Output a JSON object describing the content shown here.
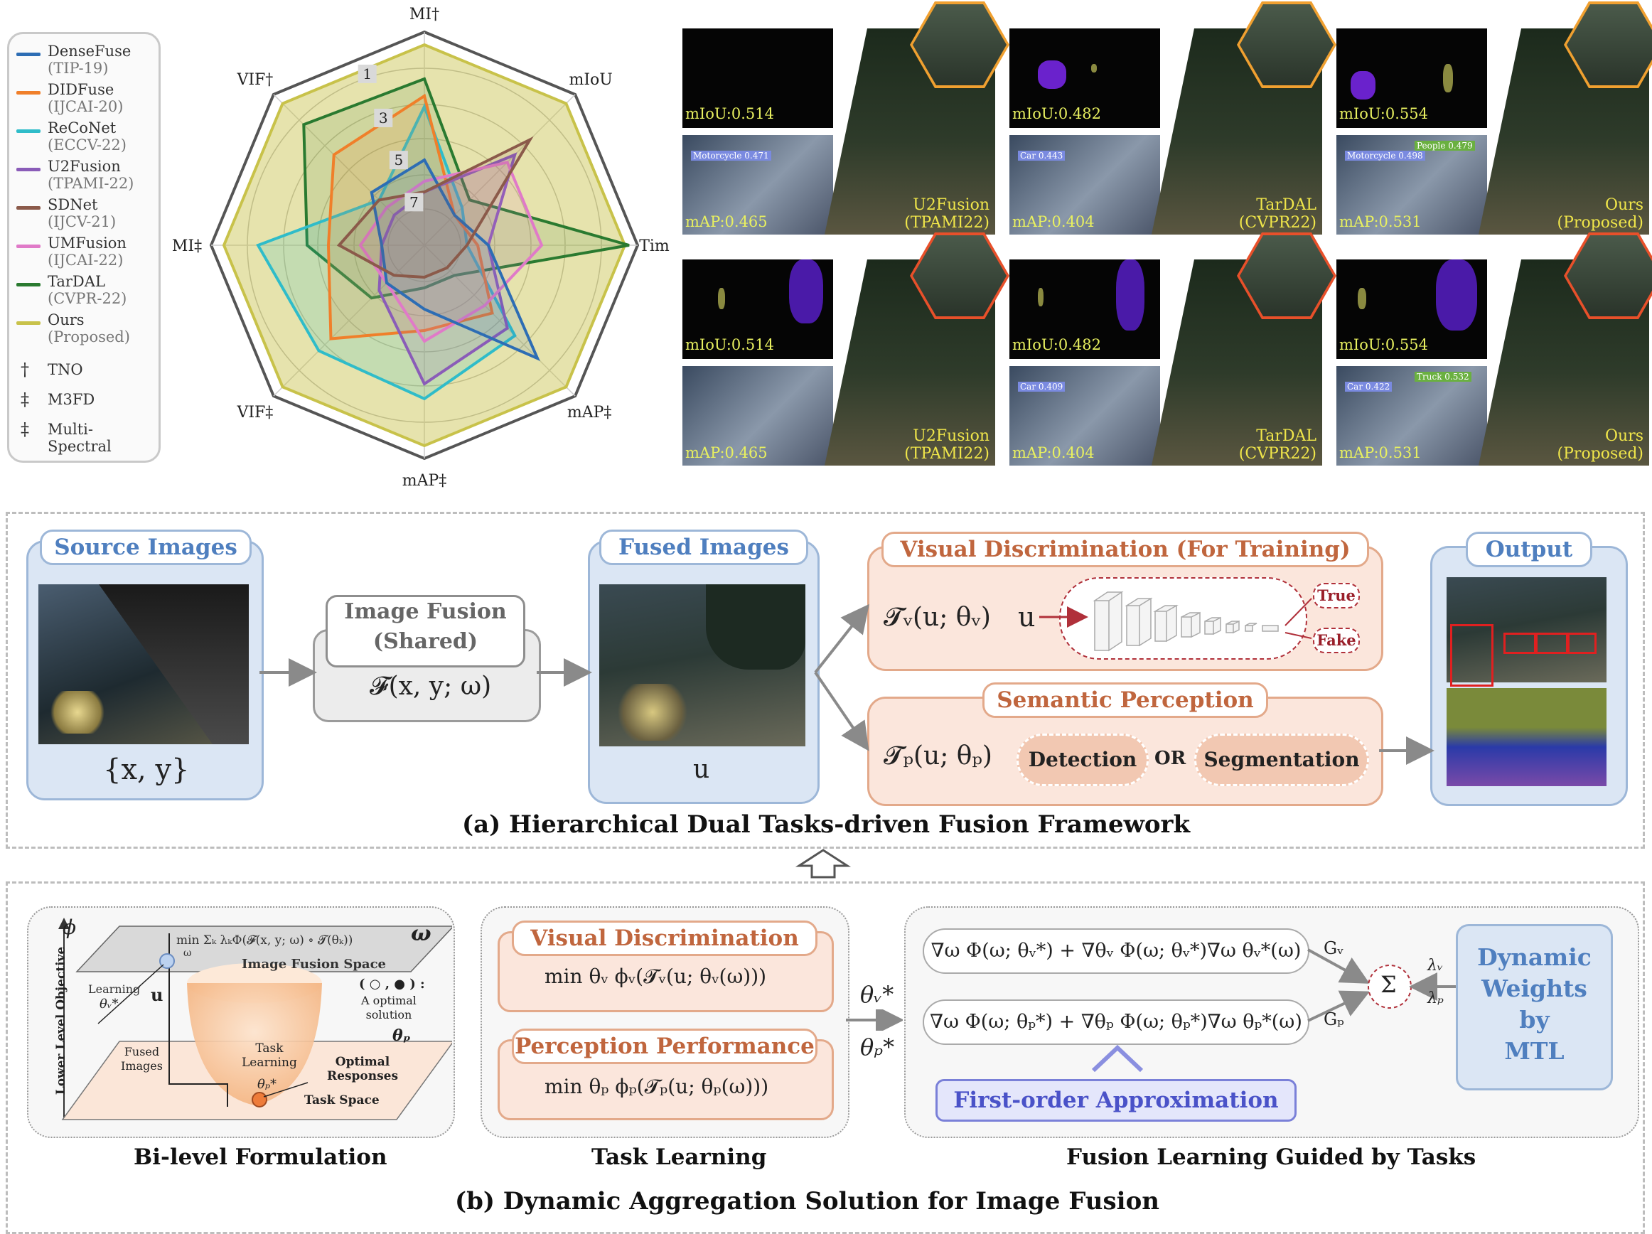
{
  "legend": {
    "methods": [
      {
        "name": "DenseFuse",
        "venue": "(TIP-19)",
        "color": "#2d6db4"
      },
      {
        "name": "DIDFuse",
        "venue": "(IJCAI-20)",
        "color": "#f07f2a"
      },
      {
        "name": "ReCoNet",
        "venue": "(ECCV-22)",
        "color": "#2fbcc9"
      },
      {
        "name": "U2Fusion",
        "venue": "(TPAMI-22)",
        "color": "#8a5cb8"
      },
      {
        "name": "SDNet",
        "venue": "(IJCV-21)",
        "color": "#8b5a4a"
      },
      {
        "name": "UMFusion",
        "venue": "(IJCAI-22)",
        "color": "#e07ac8"
      },
      {
        "name": "TarDAL",
        "venue": "(CVPR-22)",
        "color": "#2a7a30"
      },
      {
        "name": "Ours",
        "venue": "(Proposed)",
        "color": "#c8c24a"
      }
    ],
    "symbols": [
      {
        "sym": "†",
        "label": "TNO"
      },
      {
        "sym": "‡",
        "label": "M3FD"
      },
      {
        "sym": "‡",
        "label": "Multi-\nSpectral"
      }
    ]
  },
  "radar": {
    "axes": [
      "MI†",
      "mIoU",
      "Time",
      "mAP‡",
      "mAP‡",
      "VIF‡",
      "MI‡",
      "VIF†"
    ],
    "rank_labels": [
      "1",
      "3",
      "5",
      "7"
    ]
  },
  "results": {
    "tiles": [
      {
        "miou": "mIoU:0.514",
        "map": "mAP:0.465",
        "method": "U2Fusion",
        "venue": "(TPAMI22)",
        "det1": "Motorcycle 0.471",
        "det2": ""
      },
      {
        "miou": "mIoU:0.482",
        "map": "mAP:0.404",
        "method": "TarDAL",
        "venue": "(CVPR22)",
        "det1": "Car 0.443",
        "det2": ""
      },
      {
        "miou": "mIoU:0.554",
        "map": "mAP:0.531",
        "method": "Ours",
        "venue": "(Proposed)",
        "det1": "Motorcycle 0.498",
        "det2": "People 0.479"
      },
      {
        "miou": "mIoU:0.514",
        "map": "mAP:0.465",
        "method": "U2Fusion",
        "venue": "(TPAMI22)",
        "det1": "",
        "det2": ""
      },
      {
        "miou": "mIoU:0.482",
        "map": "mAP:0.404",
        "method": "TarDAL",
        "venue": "(CVPR22)",
        "det1": "Car 0.409",
        "det2": ""
      },
      {
        "miou": "mIoU:0.554",
        "map": "mAP:0.531",
        "method": "Ours",
        "venue": "(Proposed)",
        "det1": "Car 0.422",
        "det2": "Truck 0.532"
      }
    ]
  },
  "framework": {
    "source_title": "Source Images",
    "source_var": "{x, y}",
    "fusion_title": "Image Fusion\n(Shared)",
    "fusion_formula": "𝓕(x, y; ω)",
    "fused_title": "Fused Images",
    "fused_var": "u",
    "vd_title": "Visual Discrimination (For Training)",
    "vd_formula": "𝓣ᵥ(u; θᵥ)",
    "vd_u": "u",
    "true_label": "True",
    "fake_label": "Fake",
    "sp_title": "Semantic Perception",
    "sp_formula": "𝓣ₚ(u; θₚ)",
    "detection": "Detection",
    "or_label": "OR",
    "segmentation": "Segmentation",
    "output_title": "Output",
    "caption": "(a) Hierarchical Dual Tasks-driven Fusion Framework"
  },
  "solution": {
    "bilevel": {
      "phi": "ϕ",
      "omega": "ω",
      "objective": "min Σₖ λₖΦ(𝓕(x, y; ω) ∘ 𝓣(θₖ))",
      "objective_sub": "ω",
      "fusion_space": "Image Fusion Space",
      "learning": "Learning",
      "theta_v": "θᵥ*",
      "u": "u",
      "optimal_legend": "( ○ , ● ) :",
      "optimal_text": "A optimal\nsolution",
      "theta_p": "θₚ",
      "fused_images": "Fused\nImages",
      "task_learning": "Task\nLearning",
      "theta_p_star": "θₚ*",
      "optimal_responses": "Optimal\nResponses",
      "task_space": "Task Space",
      "y_axis": "Lower Level Objective",
      "label": "Bi-level Formulation"
    },
    "task_learning": {
      "vd_title": "Visual Discrimination",
      "vd_formula": "min θᵥ ϕᵥ(𝓣ᵥ(u; θᵥ(ω)))",
      "pp_title": "Perception Performance",
      "pp_formula": "min θₚ ϕₚ(𝓣ₚ(u; θₚ(ω)))",
      "label": "Task Learning"
    },
    "theta_v_star": "θᵥ*",
    "theta_p_star": "θₚ*",
    "fusion_learning": {
      "grad_v": "∇ω Φ(ω; θᵥ*) + ∇θᵥ Φ(ω; θᵥ*)∇ω θᵥ*(ω)",
      "grad_p": "∇ω Φ(ω; θₚ*) + ∇θₚ Φ(ω; θₚ*)∇ω θₚ*(ω)",
      "g_v": "Gᵥ",
      "g_p": "Gₚ",
      "sum": "Σ",
      "lambda_v": "λᵥ",
      "lambda_p": "λₚ",
      "dynamic": "Dynamic\nWeights\nby\nMTL",
      "approx": "First-order Approximation",
      "label": "Fusion Learning Guided by Tasks"
    },
    "caption": "(b) Dynamic Aggregation Solution for Image Fusion"
  }
}
